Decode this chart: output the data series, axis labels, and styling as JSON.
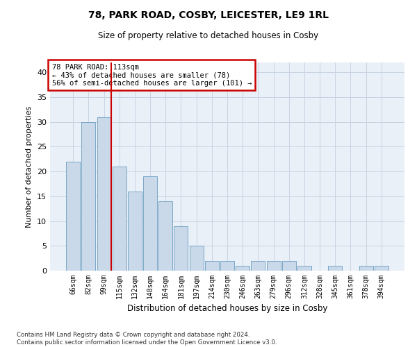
{
  "title1": "78, PARK ROAD, COSBY, LEICESTER, LE9 1RL",
  "title2": "Size of property relative to detached houses in Cosby",
  "xlabel": "Distribution of detached houses by size in Cosby",
  "ylabel": "Number of detached properties",
  "categories": [
    "66sqm",
    "82sqm",
    "99sqm",
    "115sqm",
    "132sqm",
    "148sqm",
    "164sqm",
    "181sqm",
    "197sqm",
    "214sqm",
    "230sqm",
    "246sqm",
    "263sqm",
    "279sqm",
    "296sqm",
    "312sqm",
    "328sqm",
    "345sqm",
    "361sqm",
    "378sqm",
    "394sqm"
  ],
  "values": [
    22,
    30,
    31,
    21,
    16,
    19,
    14,
    9,
    5,
    2,
    2,
    1,
    2,
    2,
    2,
    1,
    0,
    1,
    0,
    1,
    1
  ],
  "bar_color": "#c9d9ea",
  "bar_edge_color": "#6a9ec0",
  "vline_color": "#cc0000",
  "vline_bar_index": 2,
  "annotation_line1": "78 PARK ROAD: 113sqm",
  "annotation_line2": "← 43% of detached houses are smaller (78)",
  "annotation_line3": "56% of semi-detached houses are larger (101) →",
  "annotation_box_color": "#ffffff",
  "annotation_box_edge": "#cc0000",
  "ylim": [
    0,
    42
  ],
  "yticks": [
    0,
    5,
    10,
    15,
    20,
    25,
    30,
    35,
    40
  ],
  "footer": "Contains HM Land Registry data © Crown copyright and database right 2024.\nContains public sector information licensed under the Open Government Licence v3.0.",
  "grid_color": "#c8d4e3",
  "background_color": "#eaf0f8"
}
